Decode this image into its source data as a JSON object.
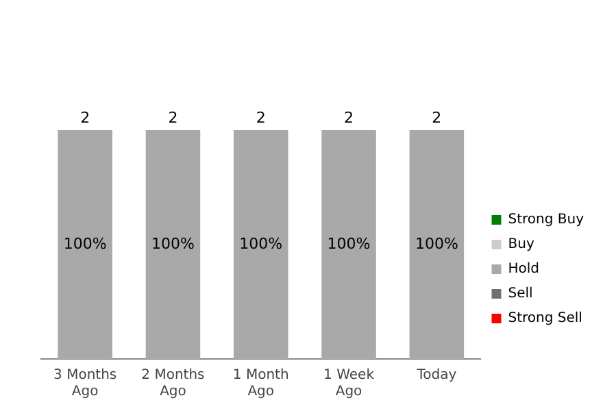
{
  "chart_data": {
    "type": "bar",
    "stacked": true,
    "categories": [
      "3 Months Ago",
      "2 Months Ago",
      "1 Month Ago",
      "1 Week Ago",
      "Today"
    ],
    "series": [
      {
        "name": "Strong Buy",
        "color": "#008000",
        "values": [
          null,
          null,
          null,
          null,
          null
        ]
      },
      {
        "name": "Buy",
        "color": "#cccccc",
        "values": [
          null,
          null,
          null,
          null,
          null
        ]
      },
      {
        "name": "Hold",
        "color": "#a9a9a9",
        "values": [
          100,
          100,
          100,
          100,
          100
        ],
        "value_labels": [
          "100%",
          "100%",
          "100%",
          "100%",
          "100%"
        ]
      },
      {
        "name": "Sell",
        "color": "#707070",
        "values": [
          null,
          null,
          null,
          null,
          null
        ]
      },
      {
        "name": "Strong Sell",
        "color": "#ff0000",
        "values": [
          null,
          null,
          null,
          null,
          null
        ]
      }
    ],
    "annotations": [
      {
        "text": "2",
        "x": "3 Months Ago",
        "y": 100
      },
      {
        "text": "2",
        "x": "2 Months Ago",
        "y": 100
      },
      {
        "text": "2",
        "x": "1 Month Ago",
        "y": 100
      },
      {
        "text": "2",
        "x": "1 Week Ago",
        "y": 100
      },
      {
        "text": "2",
        "x": "Today",
        "y": 100
      }
    ],
    "legend": "right",
    "grid": false
  }
}
